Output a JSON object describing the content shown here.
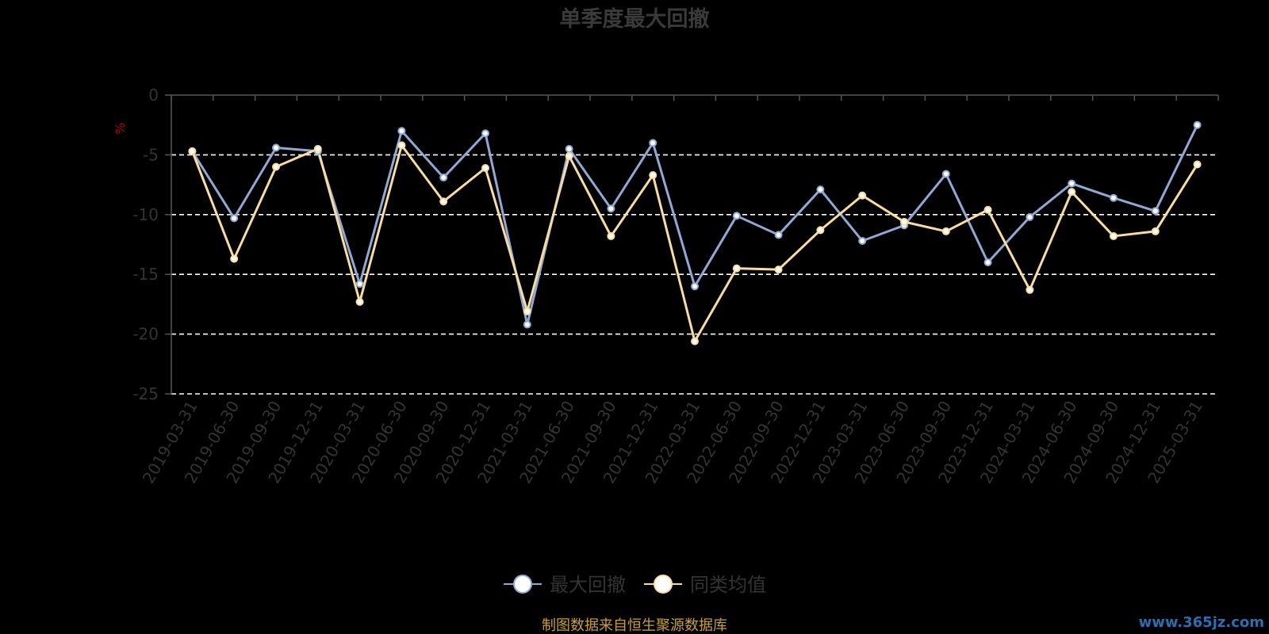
{
  "chart_data": {
    "type": "line",
    "title": "单季度最大回撤",
    "ylabel": "%",
    "ylim": [
      -25,
      0
    ],
    "yticks": [
      0,
      -5,
      -10,
      -15,
      -20,
      -25
    ],
    "grid": true,
    "legend_position": "bottom",
    "categories": [
      "2019-03-31",
      "2019-06-30",
      "2019-09-30",
      "2019-12-31",
      "2020-03-31",
      "2020-06-30",
      "2020-09-30",
      "2020-12-31",
      "2021-03-31",
      "2021-06-30",
      "2021-09-30",
      "2021-12-31",
      "2022-03-31",
      "2022-06-30",
      "2022-09-30",
      "2022-12-31",
      "2023-03-31",
      "2023-06-30",
      "2023-09-30",
      "2023-12-31",
      "2024-03-31",
      "2024-06-30",
      "2024-09-30",
      "2024-12-31",
      "2025-03-31"
    ],
    "series": [
      {
        "name": "最大回撤",
        "color": "#8fa8d4",
        "values": [
          -4.7,
          -10.3,
          -4.4,
          -4.7,
          -15.8,
          -3.0,
          -6.9,
          -3.2,
          -19.2,
          -4.5,
          -9.5,
          -4.0,
          -16.0,
          -10.1,
          -11.7,
          -7.9,
          -12.2,
          -10.9,
          -6.6,
          -14.0,
          -10.2,
          -7.4,
          -8.6,
          -9.7,
          -2.5
        ]
      },
      {
        "name": "同类均值",
        "color": "#f8dca0",
        "values": [
          -4.7,
          -13.7,
          -6.0,
          -4.5,
          -17.3,
          -4.2,
          -8.9,
          -6.1,
          -18.1,
          -5.1,
          -11.8,
          -6.7,
          -20.6,
          -14.5,
          -14.6,
          -11.3,
          -8.4,
          -10.6,
          -11.4,
          -9.6,
          -16.3,
          -8.1,
          -11.8,
          -11.4,
          -5.8
        ]
      }
    ]
  },
  "source_note": "制图数据来自恒生聚源数据库",
  "watermark": "www.365jz.com"
}
